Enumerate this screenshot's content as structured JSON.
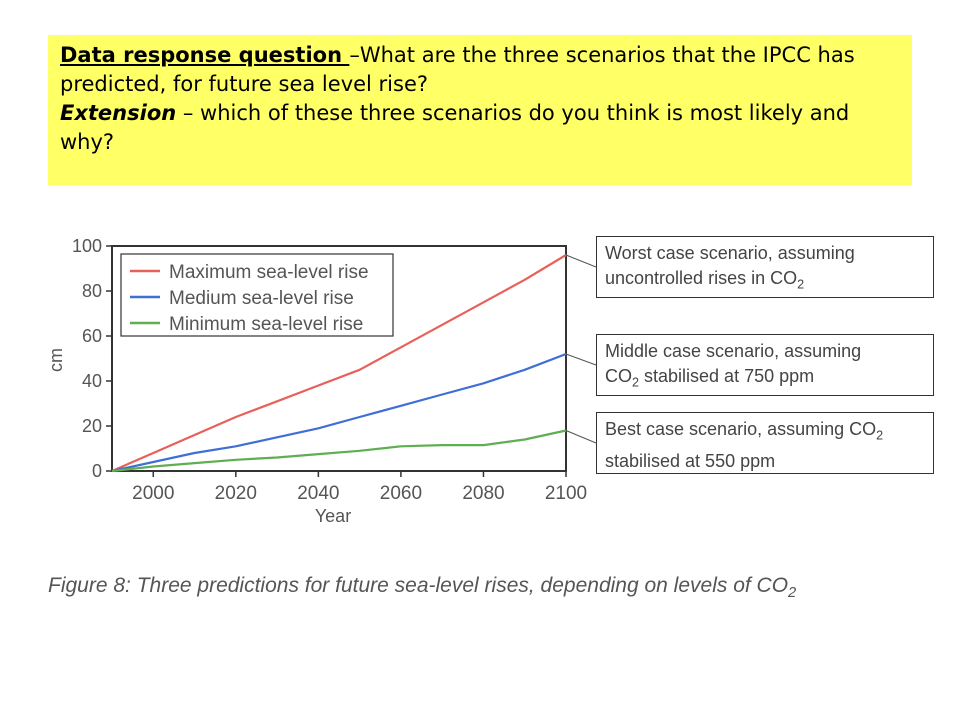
{
  "question": {
    "heading": "Data response question ",
    "text": "–What are the three scenarios that the IPCC has predicted, for future sea level rise?",
    "extension_label": "Extension",
    "extension_text": " – which of these three scenarios do you think is most likely and why?"
  },
  "chart_data": {
    "type": "line",
    "xlabel": "Year",
    "ylabel": "cm",
    "xlim": [
      1990,
      2100
    ],
    "ylim": [
      0,
      100
    ],
    "x_ticks": [
      2000,
      2020,
      2040,
      2060,
      2080,
      2100
    ],
    "y_ticks": [
      0,
      20,
      40,
      60,
      80,
      100
    ],
    "grid": false,
    "legend_position": "top-left",
    "series": [
      {
        "name": "Maximum sea-level rise",
        "color": "#e8605a",
        "x": [
          1990,
          2000,
          2010,
          2020,
          2030,
          2040,
          2050,
          2060,
          2070,
          2080,
          2090,
          2100
        ],
        "y": [
          0,
          8,
          16,
          24,
          31,
          38,
          45,
          55,
          65,
          75,
          85,
          96
        ]
      },
      {
        "name": "Medium sea-level rise",
        "color": "#3f6fd6",
        "x": [
          1990,
          2000,
          2010,
          2020,
          2030,
          2040,
          2050,
          2060,
          2070,
          2080,
          2090,
          2100
        ],
        "y": [
          0,
          4,
          8,
          11,
          15,
          19,
          24,
          29,
          34,
          39,
          45,
          52
        ]
      },
      {
        "name": "Minimum sea-level rise",
        "color": "#5fae52",
        "x": [
          1990,
          2000,
          2010,
          2020,
          2030,
          2040,
          2050,
          2060,
          2070,
          2080,
          2090,
          2100
        ],
        "y": [
          0,
          2,
          3.5,
          5,
          6,
          7.5,
          9,
          11,
          11.5,
          11.5,
          14,
          18
        ]
      }
    ],
    "annotations": [
      {
        "line1": "Worst case scenario, assuming",
        "line2_prefix": "uncontrolled rises in CO",
        "line2_sub": "2",
        "line2_suffix": ""
      },
      {
        "line1": "Middle case scenario, assuming",
        "line2_prefix": "CO",
        "line2_sub": "2",
        "line2_suffix": " stabilised at 750 ppm"
      },
      {
        "line1_prefix": "Best case scenario, assuming CO",
        "line1_sub": "2",
        "line2": "stabilised at 550 ppm"
      }
    ],
    "caption_prefix": "Figure 8: Three predictions for future sea-level rises, depending on levels of CO",
    "caption_sub": "2"
  }
}
